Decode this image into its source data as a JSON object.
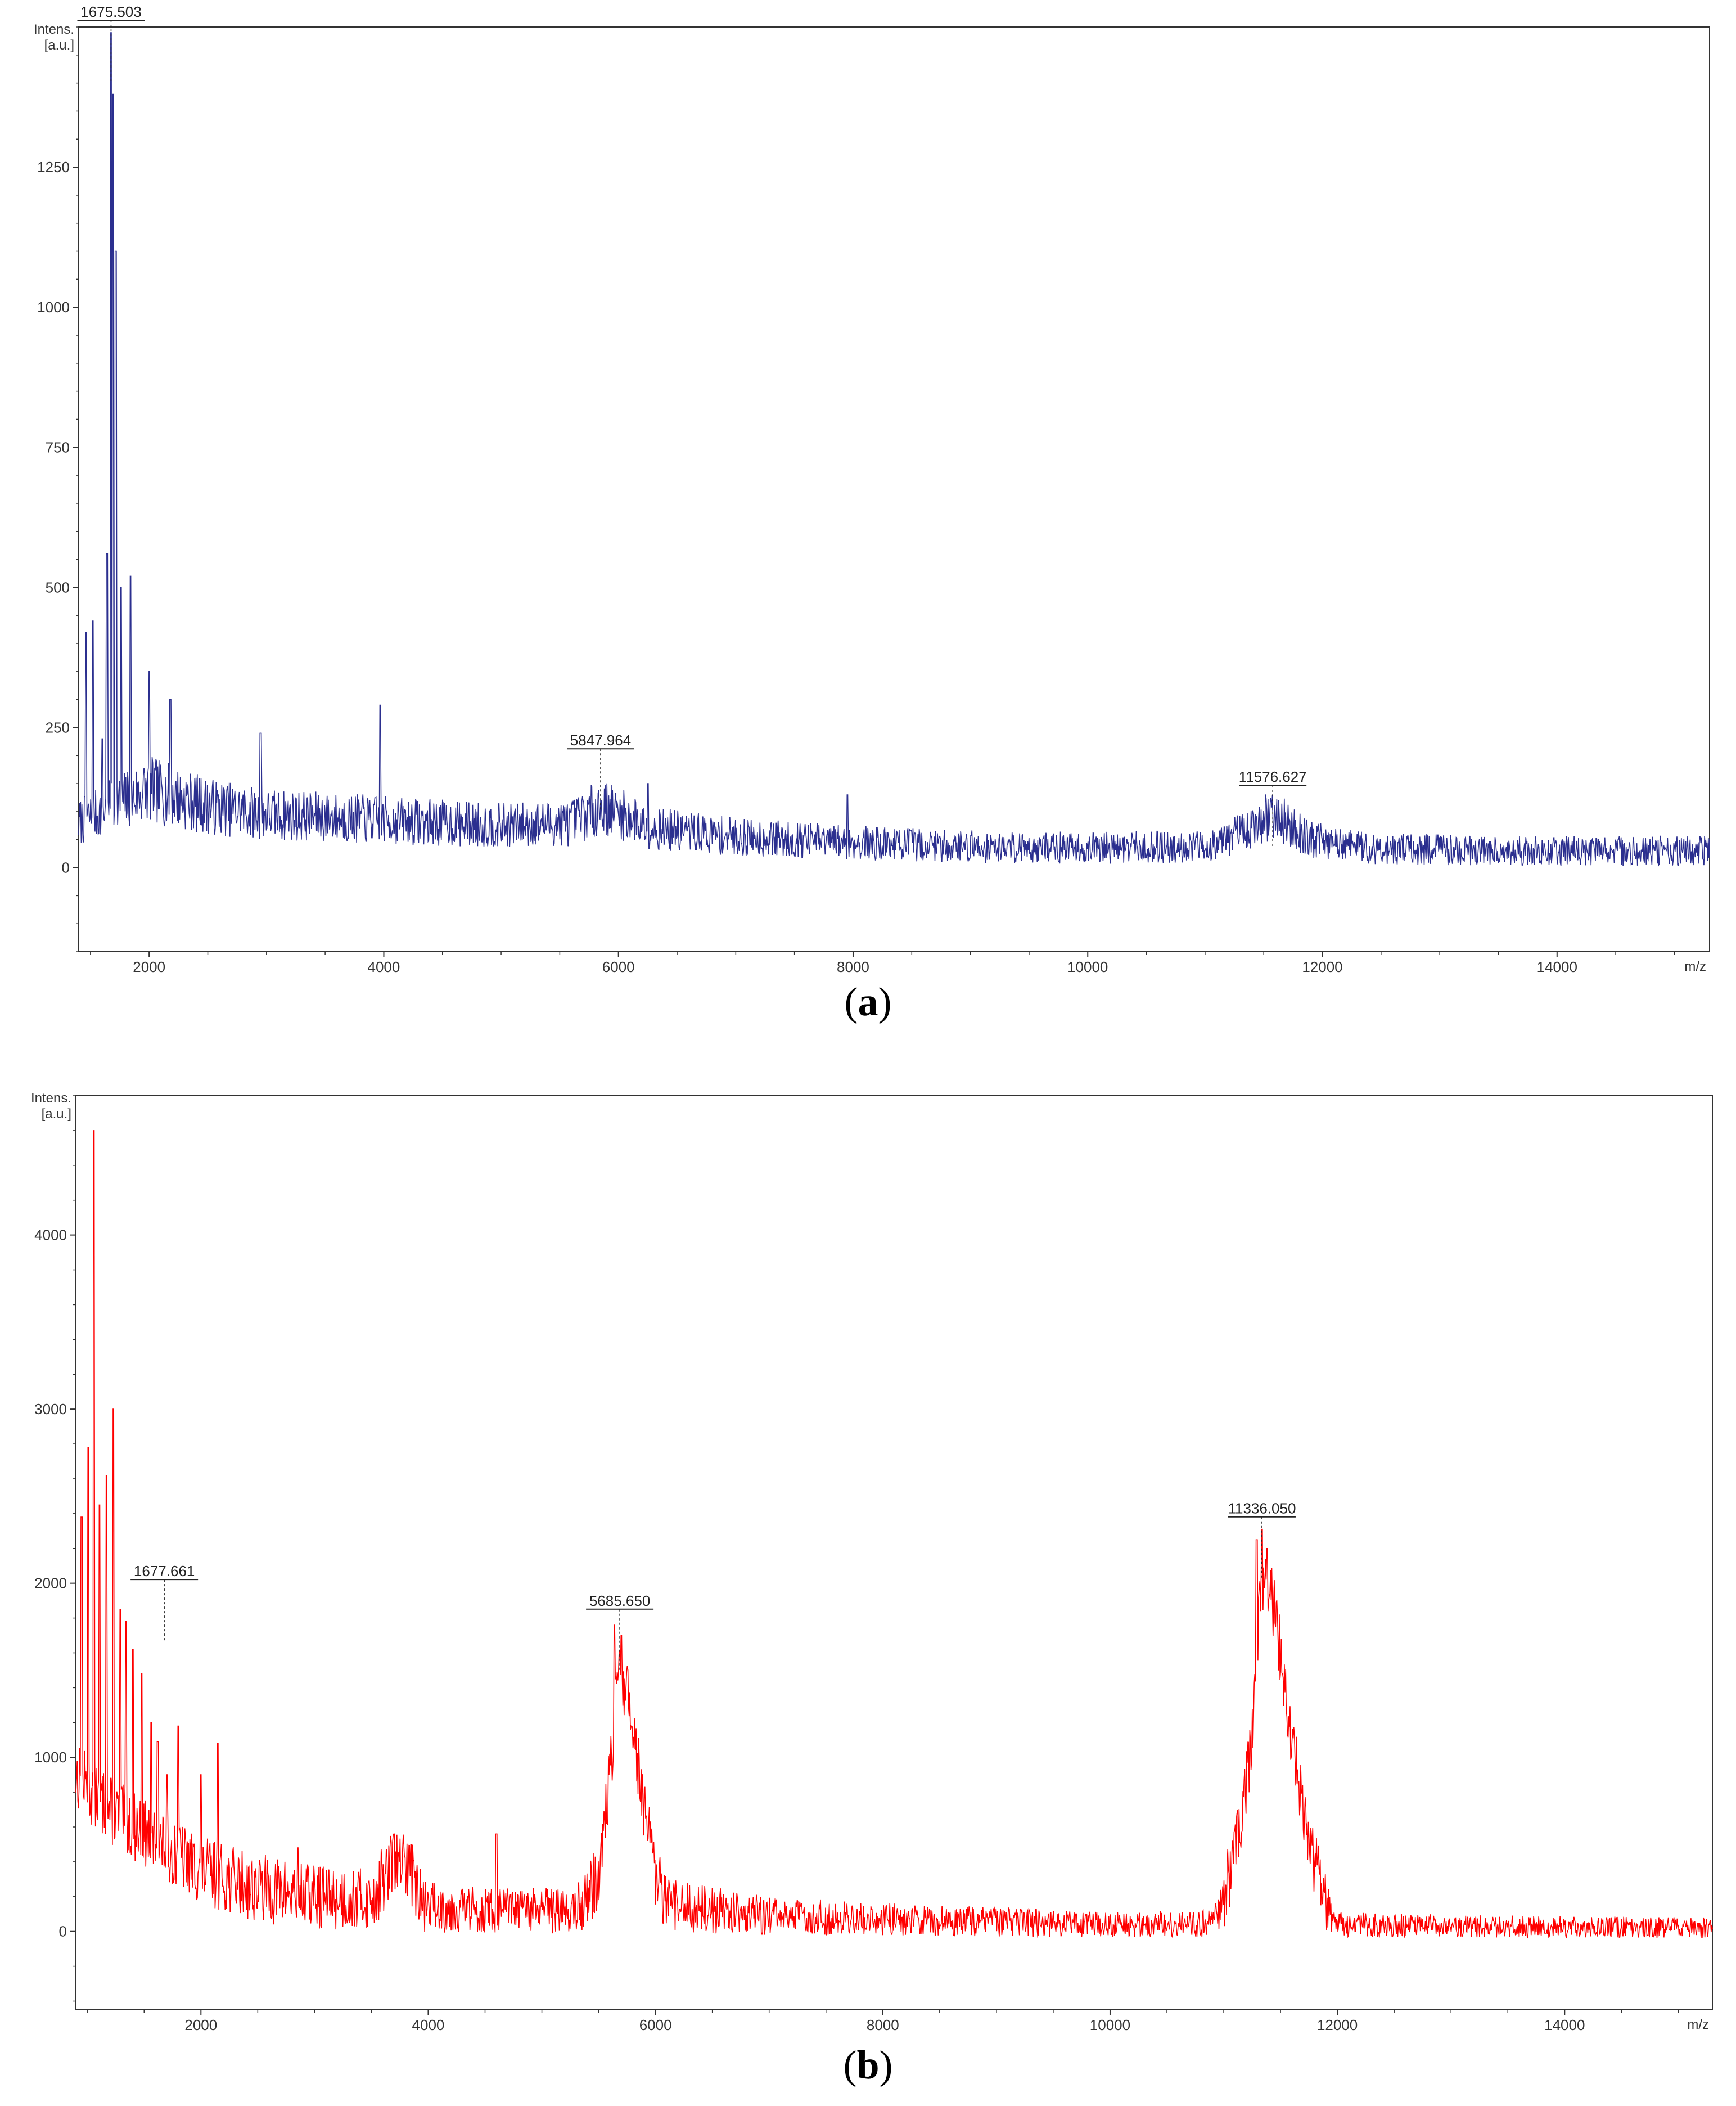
{
  "panels": [
    {
      "id": "a",
      "caption_open": "(",
      "caption_letter": "a",
      "caption_close": ")"
    },
    {
      "id": "b",
      "caption_open": "(",
      "caption_letter": "b",
      "caption_close": ")"
    }
  ],
  "chart_data": [
    {
      "type": "line",
      "title": "",
      "ylabel_line1": "Intens.",
      "ylabel_line2": "[a.u.]",
      "xlabel": "m/z",
      "xlim": [
        1400,
        15300
      ],
      "ylim": [
        -150,
        1500
      ],
      "x_ticks": [
        2000,
        4000,
        6000,
        8000,
        10000,
        12000,
        14000
      ],
      "y_ticks": [
        0,
        250,
        500,
        750,
        1000,
        1250
      ],
      "color": "#2b2f8f",
      "grid": false,
      "peaks": [
        {
          "label": "1675.503",
          "x": 1675.503,
          "y": 1490
        },
        {
          "label": "5847.964",
          "x": 5847.964,
          "y": 190
        },
        {
          "label": "11576.627",
          "x": 11576.627,
          "y": 125
        }
      ],
      "spikes": [
        [
          1460,
          420
        ],
        [
          1520,
          440
        ],
        [
          1600,
          230
        ],
        [
          1640,
          560
        ],
        [
          1675.503,
          1490
        ],
        [
          1690,
          1380
        ],
        [
          1715,
          1100
        ],
        [
          1760,
          500
        ],
        [
          1840,
          520
        ],
        [
          2000,
          350
        ],
        [
          2180,
          300
        ],
        [
          2950,
          240
        ],
        [
          3970,
          290
        ],
        [
          6250,
          150
        ],
        [
          7950,
          130
        ]
      ],
      "baseline": [
        [
          1400,
          80
        ],
        [
          2000,
          140
        ],
        [
          2500,
          110
        ],
        [
          3000,
          95
        ],
        [
          4000,
          85
        ],
        [
          5000,
          75
        ],
        [
          5600,
          80
        ],
        [
          5850,
          110
        ],
        [
          6300,
          70
        ],
        [
          7000,
          55
        ],
        [
          8000,
          45
        ],
        [
          9000,
          38
        ],
        [
          10000,
          35
        ],
        [
          11000,
          38
        ],
        [
          11300,
          60
        ],
        [
          11576,
          95
        ],
        [
          11900,
          50
        ],
        [
          12500,
          33
        ],
        [
          14000,
          30
        ],
        [
          15300,
          30
        ]
      ],
      "noise_amplitude": 45,
      "seed": 7
    },
    {
      "type": "line",
      "title": "",
      "ylabel_line1": "Intens.",
      "ylabel_line2": "[a.u.]",
      "xlabel": "m/z",
      "xlim": [
        900,
        15300
      ],
      "ylim": [
        -450,
        4800
      ],
      "x_ticks": [
        2000,
        4000,
        6000,
        8000,
        10000,
        12000,
        14000
      ],
      "y_ticks": [
        0,
        1000,
        2000,
        3000,
        4000
      ],
      "color": "#ff0000",
      "grid": false,
      "peaks": [
        {
          "label": "1677.661",
          "x": 1677.661,
          "y": 1950
        },
        {
          "label": "5685.650",
          "x": 5685.65,
          "y": 1780
        },
        {
          "label": "11336.050",
          "x": 11336.05,
          "y": 2310
        }
      ],
      "spikes": [
        [
          950,
          2380
        ],
        [
          1010,
          2780
        ],
        [
          1060,
          4600
        ],
        [
          1110,
          2450
        ],
        [
          1170,
          2620
        ],
        [
          1230,
          3000
        ],
        [
          1290,
          1850
        ],
        [
          1340,
          1780
        ],
        [
          1400,
          1620
        ],
        [
          1480,
          1480
        ],
        [
          1560,
          1200
        ],
        [
          1620,
          1090
        ],
        [
          1700,
          900
        ],
        [
          1800,
          1180
        ],
        [
          2000,
          900
        ],
        [
          2150,
          1080
        ],
        [
          2850,
          480
        ],
        [
          3700,
          560
        ],
        [
          3850,
          500
        ],
        [
          4600,
          560
        ],
        [
          5640,
          1760
        ],
        [
          5700,
          1700
        ],
        [
          11290,
          2250
        ],
        [
          11336.05,
          2310
        ],
        [
          11380,
          2200
        ]
      ],
      "baseline": [
        [
          900,
          900
        ],
        [
          1200,
          700
        ],
        [
          1600,
          520
        ],
        [
          2000,
          350
        ],
        [
          2500,
          250
        ],
        [
          3000,
          200
        ],
        [
          3500,
          180
        ],
        [
          3700,
          400
        ],
        [
          3850,
          350
        ],
        [
          3950,
          150
        ],
        [
          4500,
          120
        ],
        [
          5300,
          120
        ],
        [
          5500,
          300
        ],
        [
          5600,
          900
        ],
        [
          5685,
          1550
        ],
        [
          5800,
          1200
        ],
        [
          5900,
          700
        ],
        [
          6000,
          300
        ],
        [
          6100,
          150
        ],
        [
          7000,
          90
        ],
        [
          8000,
          70
        ],
        [
          9000,
          55
        ],
        [
          10000,
          40
        ],
        [
          10900,
          45
        ],
        [
          11000,
          200
        ],
        [
          11150,
          600
        ],
        [
          11250,
          1100
        ],
        [
          11336,
          2050
        ],
        [
          11450,
          1850
        ],
        [
          11600,
          1100
        ],
        [
          11750,
          500
        ],
        [
          11900,
          150
        ],
        [
          12000,
          40
        ],
        [
          13000,
          30
        ],
        [
          15300,
          20
        ]
      ],
      "noise_amplitude": 110,
      "seed": 13
    }
  ]
}
